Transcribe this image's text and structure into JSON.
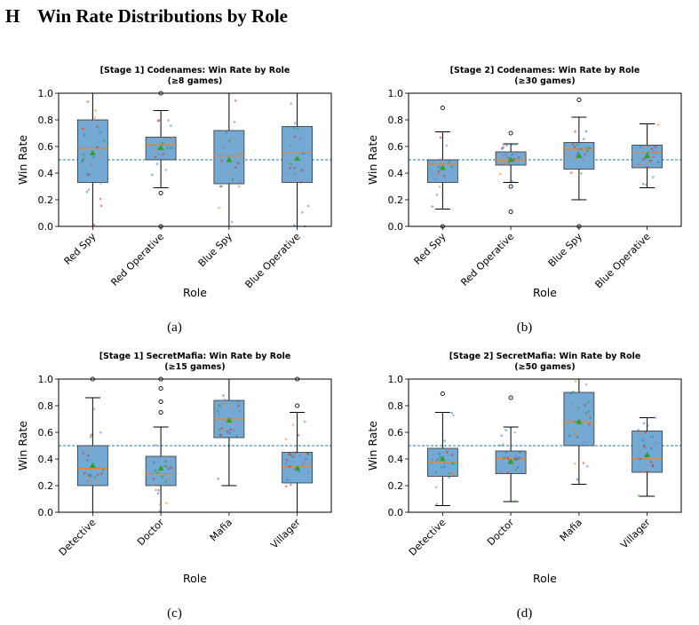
{
  "section": {
    "number": "H",
    "title": "Win Rate Distributions by Role"
  },
  "reference_line": 0.5,
  "colors": {
    "box": "#73a9d3",
    "median": "#ff7f0e",
    "mean": "#2ca02c",
    "ref": "#1f77b4",
    "jitter": [
      "#1f77b4",
      "#ff7f0e",
      "#2ca02c",
      "#d62728",
      "#9467bd"
    ]
  },
  "charts": [
    {
      "id": "a",
      "caption": "(a)",
      "chart_data": {
        "type": "box",
        "title": "[Stage 1] Codenames: Win Rate by Role",
        "subtitle": "(≥8 games)",
        "xlabel": "Role",
        "ylabel": "Win Rate",
        "ylim": [
          0,
          1
        ],
        "yticks": [
          0.0,
          0.2,
          0.4,
          0.6,
          0.8,
          1.0
        ],
        "ytick_labels": [
          "0.0",
          "0.2",
          "0.4",
          "0.6",
          "0.8",
          "1.0"
        ],
        "categories": [
          "Red Spy",
          "Red Operative",
          "Blue Spy",
          "Blue Operative"
        ],
        "boxes": [
          {
            "whislo": 0.0,
            "q1": 0.33,
            "med": 0.59,
            "q3": 0.8,
            "whishi": 1.0,
            "mean": 0.55,
            "fliers": []
          },
          {
            "whislo": 0.29,
            "q1": 0.5,
            "med": 0.61,
            "q3": 0.67,
            "whishi": 0.87,
            "mean": 0.59,
            "fliers": [
              0.0,
              0.25,
              1.0
            ]
          },
          {
            "whislo": 0.0,
            "q1": 0.32,
            "med": 0.53,
            "q3": 0.72,
            "whishi": 1.0,
            "mean": 0.5,
            "fliers": []
          },
          {
            "whislo": 0.0,
            "q1": 0.33,
            "med": 0.55,
            "q3": 0.75,
            "whishi": 1.0,
            "mean": 0.51,
            "fliers": []
          }
        ]
      }
    },
    {
      "id": "b",
      "caption": "(b)",
      "chart_data": {
        "type": "box",
        "title": "[Stage 2] Codenames: Win Rate by Role",
        "subtitle": "(≥30 games)",
        "xlabel": "Role",
        "ylabel": "Win Rate",
        "ylim": [
          0,
          1
        ],
        "yticks": [
          0.0,
          0.2,
          0.4,
          0.6,
          0.8,
          1.0
        ],
        "ytick_labels": [
          "0.0",
          "0.2",
          "0.4",
          "0.6",
          "0.8",
          "1.0"
        ],
        "categories": [
          "Red Spy",
          "Red Operative",
          "Blue Spy",
          "Blue Operative"
        ],
        "boxes": [
          {
            "whislo": 0.13,
            "q1": 0.33,
            "med": 0.47,
            "q3": 0.5,
            "whishi": 0.71,
            "mean": 0.44,
            "fliers": [
              0.0,
              0.89
            ]
          },
          {
            "whislo": 0.33,
            "q1": 0.46,
            "med": 0.5,
            "q3": 0.56,
            "whishi": 0.62,
            "mean": 0.5,
            "fliers": [
              0.11,
              0.3,
              0.7
            ]
          },
          {
            "whislo": 0.2,
            "q1": 0.43,
            "med": 0.58,
            "q3": 0.63,
            "whishi": 0.82,
            "mean": 0.53,
            "fliers": [
              0.0,
              0.95
            ]
          },
          {
            "whislo": 0.29,
            "q1": 0.44,
            "med": 0.55,
            "q3": 0.61,
            "whishi": 0.77,
            "mean": 0.53,
            "fliers": []
          }
        ]
      }
    },
    {
      "id": "c",
      "caption": "(c)",
      "chart_data": {
        "type": "box",
        "title": "[Stage 1] SecretMafia: Win Rate by Role",
        "subtitle": "(≥15 games)",
        "xlabel": "Role",
        "ylabel": "Win Rate",
        "ylim": [
          0,
          1
        ],
        "yticks": [
          0.0,
          0.2,
          0.4,
          0.6,
          0.8,
          1.0
        ],
        "ytick_labels": [
          "0.0",
          "0.2",
          "0.4",
          "0.6",
          "0.8",
          "1.0"
        ],
        "categories": [
          "Detective",
          "Doctor",
          "Mafia",
          "Villager"
        ],
        "boxes": [
          {
            "whislo": 0.0,
            "q1": 0.2,
            "med": 0.33,
            "q3": 0.5,
            "whishi": 0.86,
            "mean": 0.35,
            "fliers": [
              1.0
            ]
          },
          {
            "whislo": 0.0,
            "q1": 0.2,
            "med": 0.29,
            "q3": 0.42,
            "whishi": 0.64,
            "mean": 0.33,
            "fliers": [
              0.75,
              0.83,
              0.93,
              1.0
            ]
          },
          {
            "whislo": 0.2,
            "q1": 0.56,
            "med": 0.7,
            "q3": 0.84,
            "whishi": 1.0,
            "mean": 0.69,
            "fliers": []
          },
          {
            "whislo": 0.0,
            "q1": 0.22,
            "med": 0.34,
            "q3": 0.45,
            "whishi": 0.75,
            "mean": 0.33,
            "fliers": [
              0.8,
              1.0
            ]
          }
        ]
      }
    },
    {
      "id": "d",
      "caption": "(d)",
      "chart_data": {
        "type": "box",
        "title": "[Stage 2] SecretMafia: Win Rate by Role",
        "subtitle": "(≥50 games)",
        "xlabel": "Role",
        "ylabel": "Win Rate",
        "ylim": [
          0,
          1
        ],
        "yticks": [
          0.0,
          0.2,
          0.4,
          0.6,
          0.8,
          1.0
        ],
        "ytick_labels": [
          "0.0",
          "0.2",
          "0.4",
          "0.6",
          "0.8",
          "1.0"
        ],
        "categories": [
          "Detective",
          "Doctor",
          "Mafia",
          "Villager"
        ],
        "boxes": [
          {
            "whislo": 0.05,
            "q1": 0.27,
            "med": 0.37,
            "q3": 0.48,
            "whishi": 0.75,
            "mean": 0.4,
            "fliers": [
              0.89
            ]
          },
          {
            "whislo": 0.08,
            "q1": 0.29,
            "med": 0.4,
            "q3": 0.46,
            "whishi": 0.64,
            "mean": 0.38,
            "fliers": [
              0.86
            ]
          },
          {
            "whislo": 0.21,
            "q1": 0.5,
            "med": 0.68,
            "q3": 0.9,
            "whishi": 1.0,
            "mean": 0.68,
            "fliers": []
          },
          {
            "whislo": 0.12,
            "q1": 0.3,
            "med": 0.4,
            "q3": 0.61,
            "whishi": 0.71,
            "mean": 0.43,
            "fliers": []
          }
        ]
      }
    }
  ]
}
